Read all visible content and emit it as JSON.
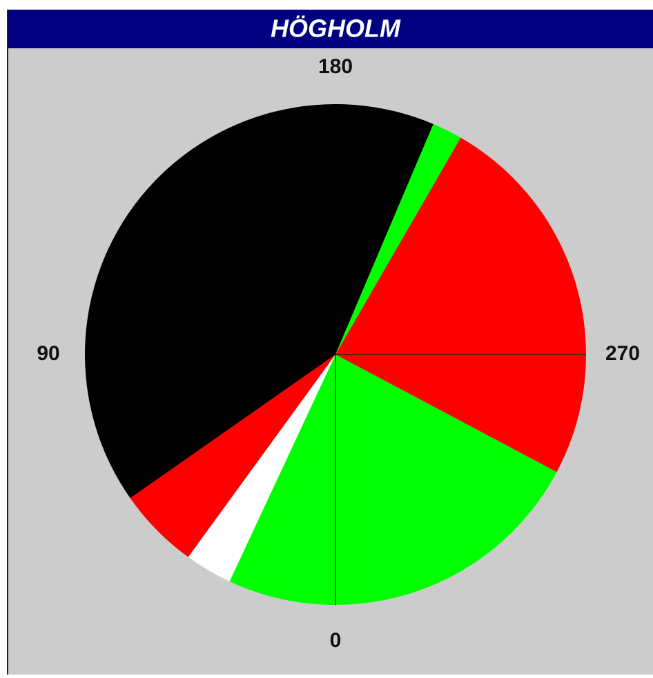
{
  "chart_data": {
    "type": "pie",
    "title": "HÖGHOLM",
    "values": [
      25,
      11,
      19,
      148,
      7,
      60,
      28,
      62
    ],
    "colors": [
      "#00ff00",
      "#ffffff",
      "#ff0000",
      "#000000",
      "#00ff00",
      "#ff0000",
      "#ff0000",
      "#00ff00"
    ],
    "lim": [
      0,
      360
    ],
    "ticks": [
      0,
      90,
      180,
      270
    ]
  }
}
